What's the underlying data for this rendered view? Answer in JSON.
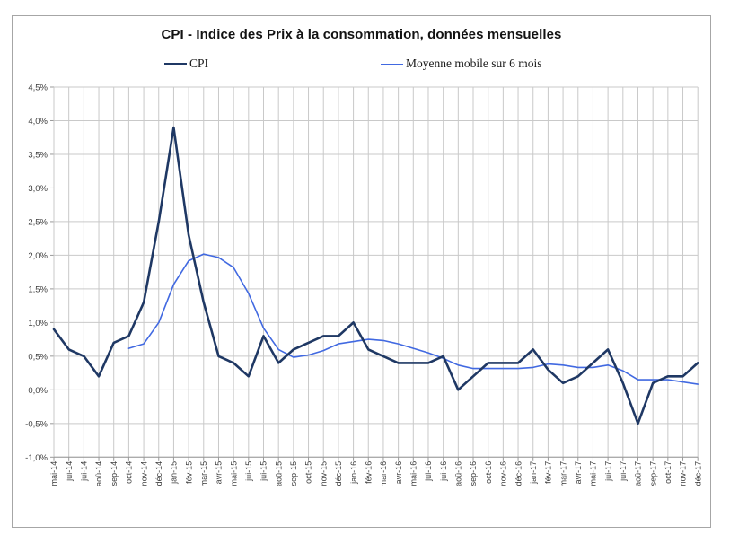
{
  "window": {
    "background": "#ffffff",
    "chart_border_color": "#a6a6a6"
  },
  "chart_data": {
    "type": "line",
    "title": "CPI - Indice des Prix à la consommation, données mensuelles",
    "categories": [
      "mai-14",
      "jui-14",
      "jui-14",
      "aoû-14",
      "sep-14",
      "oct-14",
      "nov-14",
      "déc-14",
      "jan-15",
      "fév-15",
      "mar-15",
      "avr-15",
      "mai-15",
      "jui-15",
      "jui-15",
      "aoû-15",
      "sep-15",
      "oct-15",
      "nov-15",
      "déc-15",
      "jan-16",
      "fév-16",
      "mar-16",
      "avr-16",
      "mai-16",
      "jui-16",
      "jui-16",
      "aoû-16",
      "sep-16",
      "oct-16",
      "nov-16",
      "déc-16",
      "jan-17",
      "fév-17",
      "mar-17",
      "avr-17",
      "mai-17",
      "jui-17",
      "jui-17",
      "aoû-17",
      "sep-17",
      "oct-17",
      "nov-17",
      "déc-17"
    ],
    "series": [
      {
        "name": "CPI",
        "color": "#1F3864",
        "line_width": 2.6,
        "values": [
          0.9,
          0.6,
          0.5,
          0.2,
          0.7,
          0.8,
          1.3,
          2.5,
          3.9,
          2.3,
          1.3,
          0.5,
          0.4,
          0.2,
          0.8,
          0.4,
          0.6,
          0.7,
          0.8,
          0.8,
          1.0,
          0.6,
          0.5,
          0.4,
          0.4,
          0.4,
          0.5,
          0.0,
          0.2,
          0.4,
          0.4,
          0.4,
          0.6,
          0.3,
          0.1,
          0.2,
          0.4,
          0.6,
          0.1,
          -0.5,
          0.1,
          0.2,
          0.2,
          0.4
        ]
      },
      {
        "name": "Moyenne mobile sur 6 mois",
        "color": "#4169E1",
        "line_width": 1.6,
        "values": [
          null,
          null,
          null,
          null,
          null,
          0.617,
          0.683,
          1.0,
          1.567,
          1.917,
          2.017,
          1.967,
          1.817,
          1.433,
          0.917,
          0.6,
          0.483,
          0.517,
          0.583,
          0.683,
          0.717,
          0.75,
          0.733,
          0.683,
          0.617,
          0.55,
          0.467,
          0.367,
          0.317,
          0.317,
          0.317,
          0.317,
          0.333,
          0.383,
          0.367,
          0.333,
          0.333,
          0.367,
          0.283,
          0.15,
          0.15,
          0.15,
          0.117,
          0.083
        ]
      }
    ],
    "y_axis": {
      "min": -1.0,
      "max": 4.5,
      "step": 0.5,
      "tick_labels": [
        "4,5%",
        "4,0%",
        "3,5%",
        "3,0%",
        "2,5%",
        "2,0%",
        "1,5%",
        "1,0%",
        "0,5%",
        "0,0%",
        "-0,5%",
        "-1,0%"
      ],
      "number_format": "percent, comma decimal"
    },
    "x_axis": {
      "label_rotation_degrees": -90,
      "first_label": "mai-14",
      "last_label": "déc-17"
    },
    "legend": {
      "position": "top",
      "entries": [
        "CPI",
        "Moyenne mobile sur 6 mois"
      ]
    },
    "grid": {
      "horizontal": true,
      "vertical": true,
      "color": "#c9c9c9",
      "axis_color": "#999999"
    }
  }
}
